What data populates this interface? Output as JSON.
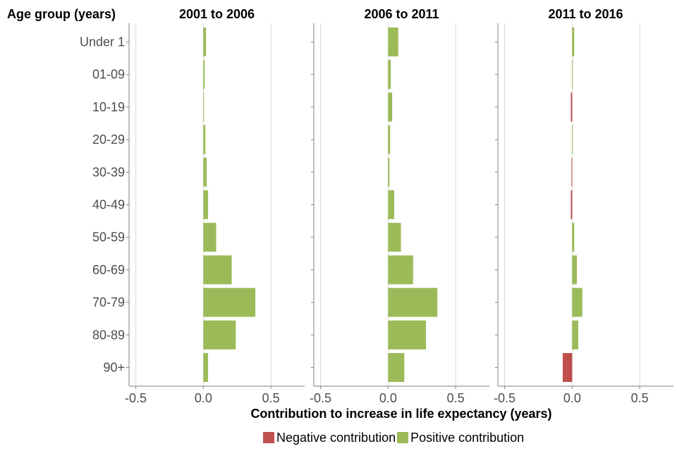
{
  "chart_data": {
    "type": "bar",
    "orientation": "horizontal",
    "layout": "faceted",
    "category_axis_label": "Age group (years)",
    "categories": [
      "Under 1",
      "01-09",
      "10-19",
      "20-29",
      "30-39",
      "40-49",
      "50-59",
      "60-69",
      "70-79",
      "80-89",
      "90+"
    ],
    "xlabel": "Contribution to increase in life expectancy (years)",
    "xlim": [
      -0.55,
      0.75
    ],
    "xticks": [
      "-0.5",
      "0.0",
      "0.5"
    ],
    "xtick_values": [
      -0.5,
      0,
      0.5
    ],
    "grid": "vertical",
    "legend_position": "bottom",
    "colors": {
      "negative": "#c0504d",
      "positive": "#9bbb59"
    },
    "legend": [
      {
        "key": "negative",
        "label": "Negative contribution"
      },
      {
        "key": "positive",
        "label": "Positive contribution"
      }
    ],
    "panels": [
      {
        "title": "2001 to 2006",
        "values": [
          0.02,
          0.01,
          0.005,
          0.015,
          0.025,
          0.035,
          0.095,
          0.21,
          0.385,
          0.24,
          0.035
        ]
      },
      {
        "title": "2006 to 2011",
        "values": [
          0.075,
          0.02,
          0.03,
          0.015,
          0.01,
          0.045,
          0.095,
          0.185,
          0.365,
          0.28,
          0.12
        ]
      },
      {
        "title": "2011 to 2016",
        "values": [
          0.015,
          0.005,
          -0.01,
          0.005,
          -0.005,
          -0.01,
          0.015,
          0.035,
          0.075,
          0.045,
          -0.07
        ]
      }
    ]
  }
}
